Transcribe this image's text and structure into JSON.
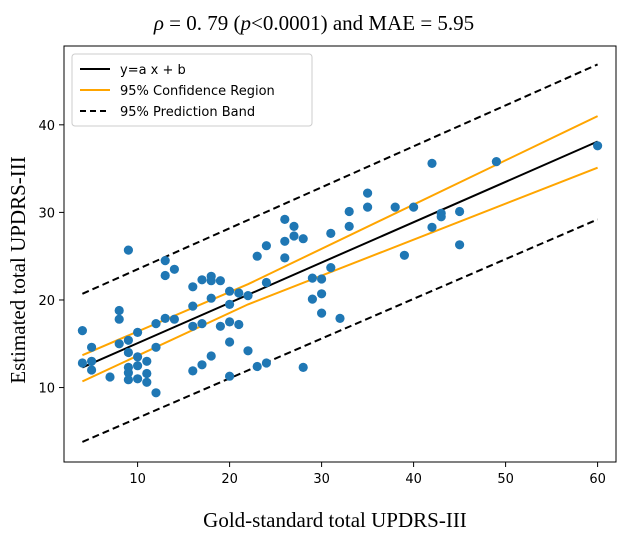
{
  "chart_data": {
    "type": "scatter",
    "title": {
      "rho_symbol": "ρ",
      "rho_value": " = 0. 79 (",
      "p_symbol": "p",
      "p_value": "<0.0001) and MAE = 5.95"
    },
    "xlabel": "Gold-standard total UPDRS-III",
    "ylabel": "Estimated total UPDRS-III",
    "xlim": [
      2,
      62
    ],
    "ylim": [
      1.5,
      49
    ],
    "xticks": [
      10,
      20,
      30,
      40,
      50,
      60
    ],
    "yticks": [
      10,
      20,
      30,
      40
    ],
    "grid": false,
    "legend_position": "top-left",
    "legend": [
      {
        "label": "y=a x + b",
        "color": "#000000",
        "style": "solid"
      },
      {
        "label": "95% Confidence Region",
        "color": "#ffa500",
        "style": "solid"
      },
      {
        "label": "95% Prediction Band",
        "color": "#000000",
        "style": "dashed"
      }
    ],
    "marker_color": "#1f77b4",
    "fit_line": {
      "x": [
        4,
        60
      ],
      "y": [
        12.3,
        38.1
      ]
    },
    "confidence_upper": {
      "x": [
        4,
        22,
        60
      ],
      "y": [
        13.7,
        21.8,
        41.0
      ]
    },
    "confidence_lower": {
      "x": [
        4,
        22,
        60
      ],
      "y": [
        10.7,
        19.5,
        35.1
      ]
    },
    "prediction_upper": {
      "x": [
        4,
        60
      ],
      "y": [
        20.7,
        46.9
      ]
    },
    "prediction_lower": {
      "x": [
        4,
        60
      ],
      "y": [
        3.8,
        29.2
      ]
    },
    "points": [
      [
        4,
        16.5
      ],
      [
        4,
        12.8
      ],
      [
        5,
        14.6
      ],
      [
        5,
        13.0
      ],
      [
        5,
        12.0
      ],
      [
        7,
        11.2
      ],
      [
        8,
        18.8
      ],
      [
        8,
        17.8
      ],
      [
        8,
        15.0
      ],
      [
        9,
        25.7
      ],
      [
        9,
        15.4
      ],
      [
        9,
        14.0
      ],
      [
        9,
        12.3
      ],
      [
        9,
        11.7
      ],
      [
        9,
        10.9
      ],
      [
        10,
        16.3
      ],
      [
        10,
        13.5
      ],
      [
        10,
        12.5
      ],
      [
        10,
        11.0
      ],
      [
        11,
        13.0
      ],
      [
        11,
        11.6
      ],
      [
        11,
        10.6
      ],
      [
        12,
        17.3
      ],
      [
        12,
        14.6
      ],
      [
        12,
        9.4
      ],
      [
        13,
        24.5
      ],
      [
        13,
        22.8
      ],
      [
        13,
        17.9
      ],
      [
        14,
        23.5
      ],
      [
        14,
        17.8
      ],
      [
        16,
        21.5
      ],
      [
        16,
        19.3
      ],
      [
        16,
        17.0
      ],
      [
        16,
        11.9
      ],
      [
        17,
        22.3
      ],
      [
        17,
        17.3
      ],
      [
        17,
        12.6
      ],
      [
        18,
        22.7
      ],
      [
        18,
        22.2
      ],
      [
        18,
        20.2
      ],
      [
        18,
        13.6
      ],
      [
        19,
        22.2
      ],
      [
        19,
        17.0
      ],
      [
        20,
        21.0
      ],
      [
        20,
        19.5
      ],
      [
        20,
        17.5
      ],
      [
        20,
        15.2
      ],
      [
        20,
        11.3
      ],
      [
        21,
        20.8
      ],
      [
        21,
        17.2
      ],
      [
        22,
        20.5
      ],
      [
        22,
        14.2
      ],
      [
        23,
        25.0
      ],
      [
        23,
        12.4
      ],
      [
        24,
        26.2
      ],
      [
        24,
        22.0
      ],
      [
        24,
        12.8
      ],
      [
        26,
        29.2
      ],
      [
        26,
        26.7
      ],
      [
        26,
        24.8
      ],
      [
        27,
        28.4
      ],
      [
        27,
        27.3
      ],
      [
        28,
        27.0
      ],
      [
        28,
        12.3
      ],
      [
        29,
        22.5
      ],
      [
        29,
        20.1
      ],
      [
        30,
        22.4
      ],
      [
        30,
        20.7
      ],
      [
        30,
        18.5
      ],
      [
        31,
        27.6
      ],
      [
        31,
        23.7
      ],
      [
        32,
        17.9
      ],
      [
        33,
        30.1
      ],
      [
        33,
        28.4
      ],
      [
        35,
        32.2
      ],
      [
        35,
        30.6
      ],
      [
        38,
        30.6
      ],
      [
        39,
        25.1
      ],
      [
        40,
        30.6
      ],
      [
        42,
        35.6
      ],
      [
        42,
        28.3
      ],
      [
        43,
        29.9
      ],
      [
        43,
        29.5
      ],
      [
        45,
        30.1
      ],
      [
        45,
        26.3
      ],
      [
        49,
        35.8
      ],
      [
        60,
        37.6
      ]
    ]
  }
}
